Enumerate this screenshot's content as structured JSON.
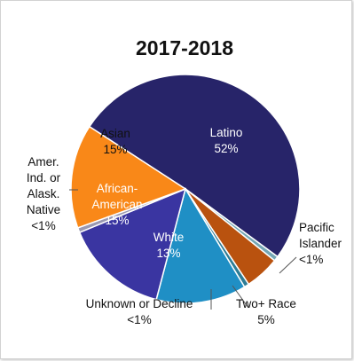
{
  "chart_data": {
    "type": "pie",
    "title": "2017-2018",
    "slices": [
      {
        "name": "Latino",
        "value": 52,
        "display": "52%",
        "color": "#272469",
        "label_color": "#ffffff",
        "label_lines": [
          "Latino",
          "52%"
        ]
      },
      {
        "name": "Pacific Islander",
        "value": 0.7,
        "display": "<1%",
        "color": "#74a7b4",
        "label_color": "#111111",
        "label_lines": [
          "Pacific",
          "Islander",
          "<1%"
        ]
      },
      {
        "name": "Two+ Race",
        "value": 5,
        "display": "5%",
        "color": "#b9520f",
        "label_color": "#111111",
        "label_lines": [
          "Two+ Race",
          "5%"
        ]
      },
      {
        "name": "Unknown or Decline",
        "value": 0.7,
        "display": "<1%",
        "color": "#2e7d96",
        "label_color": "#111111",
        "label_lines": [
          "Unknown or Decline",
          "<1%"
        ]
      },
      {
        "name": "White",
        "value": 13,
        "display": "13%",
        "color": "#1f8fc5",
        "label_color": "#ffffff",
        "label_lines": [
          "White",
          "13%"
        ]
      },
      {
        "name": "African-American",
        "value": 15,
        "display": "15%",
        "color": "#3a35a1",
        "label_color": "#ffffff",
        "label_lines": [
          "African-",
          "American",
          "15%"
        ]
      },
      {
        "name": "Amer. Ind. or Alask. Native",
        "value": 0.7,
        "display": "<1%",
        "color": "#9a99b2",
        "label_color": "#111111",
        "label_lines": [
          "Amer.",
          "Ind. or",
          "Alask.",
          "Native",
          "<1%"
        ]
      },
      {
        "name": "Asian",
        "value": 15,
        "display": "15%",
        "color": "#f98818",
        "label_color": "#111111",
        "label_lines": [
          "Asian",
          "15%"
        ]
      }
    ]
  }
}
